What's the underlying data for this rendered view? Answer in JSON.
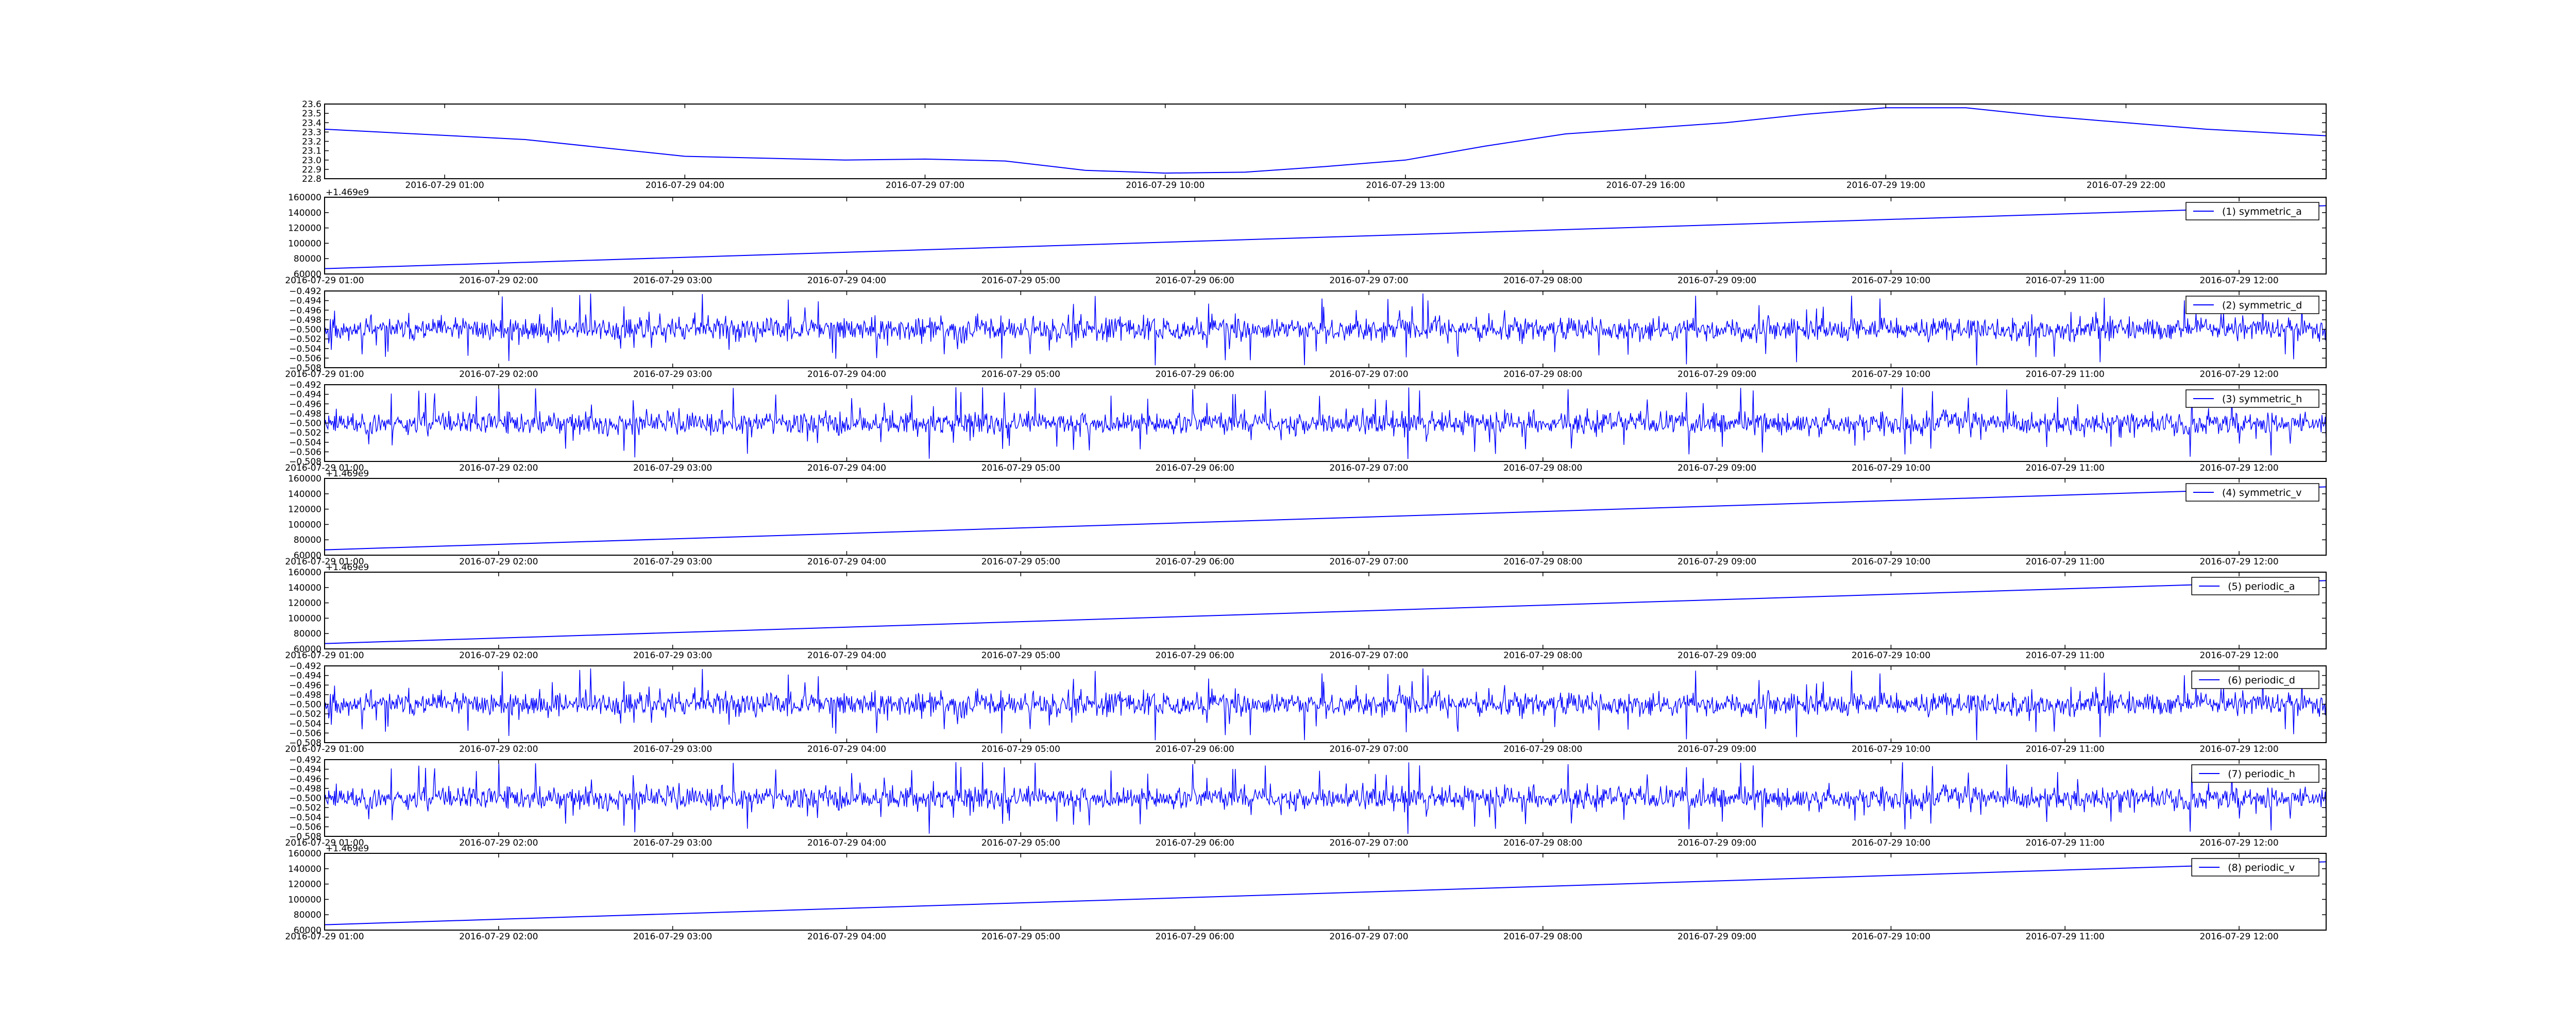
{
  "figure": {
    "background": "#ffffff",
    "line_color": "#0000ff"
  },
  "chart_data": [
    {
      "type": "line",
      "title": "",
      "ylim": [
        22.8,
        23.6
      ],
      "yticks": [
        "22.8",
        "22.9",
        "23.0",
        "23.1",
        "23.2",
        "23.3",
        "23.4",
        "23.5",
        "23.6"
      ],
      "xticks": [
        "2016-07-29 01:00",
        "2016-07-29 04:00",
        "2016-07-29 07:00",
        "2016-07-29 10:00",
        "2016-07-29 13:00",
        "2016-07-29 16:00",
        "2016-07-29 19:00",
        "2016-07-29 22:00"
      ],
      "x_range": [
        "2016-07-28 23:30",
        "2016-07-30 00:30"
      ],
      "offset_label": "",
      "legend": "",
      "series": [
        {
          "x": [
            "2016-07-28 23:30",
            "2016-07-29 02:00",
            "2016-07-29 04:00",
            "2016-07-29 06:00",
            "2016-07-29 07:00",
            "2016-07-29 08:00",
            "2016-07-29 09:00",
            "2016-07-29 10:00",
            "2016-07-29 11:00",
            "2016-07-29 12:00",
            "2016-07-29 13:00",
            "2016-07-29 14:00",
            "2016-07-29 15:00",
            "2016-07-29 16:00",
            "2016-07-29 17:00",
            "2016-07-29 18:00",
            "2016-07-29 19:00",
            "2016-07-29 20:00",
            "2016-07-29 21:00",
            "2016-07-29 22:00",
            "2016-07-29 23:00",
            "2016-07-30 00:30"
          ],
          "y": [
            23.33,
            23.22,
            23.04,
            23.0,
            23.01,
            22.99,
            22.89,
            22.86,
            22.87,
            22.93,
            23.0,
            23.15,
            23.28,
            23.34,
            23.4,
            23.49,
            23.56,
            23.56,
            23.47,
            23.4,
            23.33,
            23.26
          ]
        }
      ]
    },
    {
      "type": "line",
      "ylim": [
        60000,
        160000
      ],
      "yticks": [
        "60000",
        "80000",
        "100000",
        "120000",
        "140000",
        "160000"
      ],
      "xticks": [
        "2016-07-29 01:00",
        "2016-07-29 02:00",
        "2016-07-29 03:00",
        "2016-07-29 04:00",
        "2016-07-29 05:00",
        "2016-07-29 06:00",
        "2016-07-29 07:00",
        "2016-07-29 08:00",
        "2016-07-29 09:00",
        "2016-07-29 10:00",
        "2016-07-29 11:00",
        "2016-07-29 12:00"
      ],
      "x_range": [
        "2016-07-29 01:00",
        "2016-07-29 12:30"
      ],
      "offset_label": "+1.469e9",
      "legend": "(1) symmetric_a",
      "series": [
        {
          "x": [
            "2016-07-29 01:00",
            "2016-07-29 12:30"
          ],
          "y": [
            67000,
            149000
          ]
        }
      ]
    },
    {
      "type": "line",
      "ylim": [
        -0.508,
        -0.492
      ],
      "yticks": [
        "−0.508",
        "−0.506",
        "−0.504",
        "−0.502",
        "−0.500",
        "−0.498",
        "−0.496",
        "−0.494",
        "−0.492"
      ],
      "xticks": [
        "2016-07-29 01:00",
        "2016-07-29 02:00",
        "2016-07-29 03:00",
        "2016-07-29 04:00",
        "2016-07-29 05:00",
        "2016-07-29 06:00",
        "2016-07-29 07:00",
        "2016-07-29 08:00",
        "2016-07-29 09:00",
        "2016-07-29 10:00",
        "2016-07-29 11:00",
        "2016-07-29 12:00"
      ],
      "x_range": [
        "2016-07-29 01:00",
        "2016-07-29 12:30"
      ],
      "offset_label": "",
      "legend": "(2) symmetric_d",
      "noise": {
        "center": -0.5,
        "spread": 0.0025,
        "peak": 0.0075,
        "seed": 11
      }
    },
    {
      "type": "line",
      "ylim": [
        -0.508,
        -0.492
      ],
      "yticks": [
        "−0.508",
        "−0.506",
        "−0.504",
        "−0.502",
        "−0.500",
        "−0.498",
        "−0.496",
        "−0.494",
        "−0.492"
      ],
      "xticks": [
        "2016-07-29 01:00",
        "2016-07-29 02:00",
        "2016-07-29 03:00",
        "2016-07-29 04:00",
        "2016-07-29 05:00",
        "2016-07-29 06:00",
        "2016-07-29 07:00",
        "2016-07-29 08:00",
        "2016-07-29 09:00",
        "2016-07-29 10:00",
        "2016-07-29 11:00",
        "2016-07-29 12:00"
      ],
      "x_range": [
        "2016-07-29 01:00",
        "2016-07-29 12:30"
      ],
      "offset_label": "",
      "legend": "(3) symmetric_h",
      "noise": {
        "center": -0.5,
        "spread": 0.0025,
        "peak": 0.0075,
        "seed": 23
      }
    },
    {
      "type": "line",
      "ylim": [
        60000,
        160000
      ],
      "yticks": [
        "60000",
        "80000",
        "100000",
        "120000",
        "140000",
        "160000"
      ],
      "xticks": [
        "2016-07-29 01:00",
        "2016-07-29 02:00",
        "2016-07-29 03:00",
        "2016-07-29 04:00",
        "2016-07-29 05:00",
        "2016-07-29 06:00",
        "2016-07-29 07:00",
        "2016-07-29 08:00",
        "2016-07-29 09:00",
        "2016-07-29 10:00",
        "2016-07-29 11:00",
        "2016-07-29 12:00"
      ],
      "x_range": [
        "2016-07-29 01:00",
        "2016-07-29 12:30"
      ],
      "offset_label": "+1.469e9",
      "legend": "(4) symmetric_v",
      "series": [
        {
          "x": [
            "2016-07-29 01:00",
            "2016-07-29 12:30"
          ],
          "y": [
            67000,
            149000
          ]
        }
      ]
    },
    {
      "type": "line",
      "ylim": [
        60000,
        160000
      ],
      "yticks": [
        "60000",
        "80000",
        "100000",
        "120000",
        "140000",
        "160000"
      ],
      "xticks": [
        "2016-07-29 01:00",
        "2016-07-29 02:00",
        "2016-07-29 03:00",
        "2016-07-29 04:00",
        "2016-07-29 05:00",
        "2016-07-29 06:00",
        "2016-07-29 07:00",
        "2016-07-29 08:00",
        "2016-07-29 09:00",
        "2016-07-29 10:00",
        "2016-07-29 11:00",
        "2016-07-29 12:00"
      ],
      "x_range": [
        "2016-07-29 01:00",
        "2016-07-29 12:30"
      ],
      "offset_label": "+1.469e9",
      "legend": "(5) periodic_a",
      "series": [
        {
          "x": [
            "2016-07-29 01:00",
            "2016-07-29 12:30"
          ],
          "y": [
            67000,
            149000
          ]
        }
      ]
    },
    {
      "type": "line",
      "ylim": [
        -0.508,
        -0.492
      ],
      "yticks": [
        "−0.508",
        "−0.506",
        "−0.504",
        "−0.502",
        "−0.500",
        "−0.498",
        "−0.496",
        "−0.494",
        "−0.492"
      ],
      "xticks": [
        "2016-07-29 01:00",
        "2016-07-29 02:00",
        "2016-07-29 03:00",
        "2016-07-29 04:00",
        "2016-07-29 05:00",
        "2016-07-29 06:00",
        "2016-07-29 07:00",
        "2016-07-29 08:00",
        "2016-07-29 09:00",
        "2016-07-29 10:00",
        "2016-07-29 11:00",
        "2016-07-29 12:00"
      ],
      "x_range": [
        "2016-07-29 01:00",
        "2016-07-29 12:30"
      ],
      "offset_label": "",
      "legend": "(6) periodic_d",
      "noise": {
        "center": -0.5,
        "spread": 0.0025,
        "peak": 0.0075,
        "seed": 11
      }
    },
    {
      "type": "line",
      "ylim": [
        -0.508,
        -0.492
      ],
      "yticks": [
        "−0.508",
        "−0.506",
        "−0.504",
        "−0.502",
        "−0.500",
        "−0.498",
        "−0.496",
        "−0.494",
        "−0.492"
      ],
      "xticks": [
        "2016-07-29 01:00",
        "2016-07-29 02:00",
        "2016-07-29 03:00",
        "2016-07-29 04:00",
        "2016-07-29 05:00",
        "2016-07-29 06:00",
        "2016-07-29 07:00",
        "2016-07-29 08:00",
        "2016-07-29 09:00",
        "2016-07-29 10:00",
        "2016-07-29 11:00",
        "2016-07-29 12:00"
      ],
      "x_range": [
        "2016-07-29 01:00",
        "2016-07-29 12:30"
      ],
      "offset_label": "",
      "legend": "(7) periodic_h",
      "noise": {
        "center": -0.5,
        "spread": 0.0025,
        "peak": 0.0075,
        "seed": 23
      }
    },
    {
      "type": "line",
      "ylim": [
        60000,
        160000
      ],
      "yticks": [
        "60000",
        "80000",
        "100000",
        "120000",
        "140000",
        "160000"
      ],
      "xticks": [
        "2016-07-29 01:00",
        "2016-07-29 02:00",
        "2016-07-29 03:00",
        "2016-07-29 04:00",
        "2016-07-29 05:00",
        "2016-07-29 06:00",
        "2016-07-29 07:00",
        "2016-07-29 08:00",
        "2016-07-29 09:00",
        "2016-07-29 10:00",
        "2016-07-29 11:00",
        "2016-07-29 12:00"
      ],
      "x_range": [
        "2016-07-29 01:00",
        "2016-07-29 12:30"
      ],
      "offset_label": "+1.469e9",
      "legend": "(8) periodic_v",
      "series": [
        {
          "x": [
            "2016-07-29 01:00",
            "2016-07-29 12:30"
          ],
          "y": [
            67000,
            149000
          ]
        }
      ]
    }
  ]
}
